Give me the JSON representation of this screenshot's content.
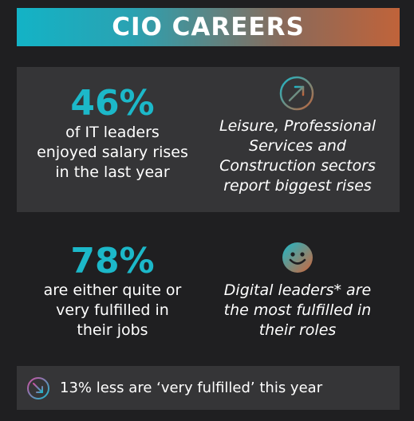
{
  "banner": {
    "title": "CIO CAREERS"
  },
  "salary": {
    "value": "46%",
    "label_lines": [
      "of IT leaders",
      "enjoyed salary rises",
      "in the last year"
    ],
    "note_lines": [
      "Leisure, Professional",
      "Services and",
      "Construction sectors",
      "report biggest rises"
    ],
    "icon": "arrow-up-right-icon"
  },
  "fulfilment": {
    "value": "78%",
    "label_lines": [
      "are either quite or",
      "very fulfilled in",
      "their jobs"
    ],
    "note_lines": [
      "Digital leaders* are",
      "the most fulfilled in",
      "their roles"
    ],
    "icon": "smiley-face-icon"
  },
  "footer": {
    "text": "13% less are ‘very fulfilled’ this year",
    "icon": "arrow-down-right-icon"
  },
  "colors": {
    "accent": "#1cb8c9",
    "gradient_start": "#13b3c6",
    "gradient_end": "#c0633a",
    "panel": "#353537",
    "background": "#1f1f21"
  }
}
